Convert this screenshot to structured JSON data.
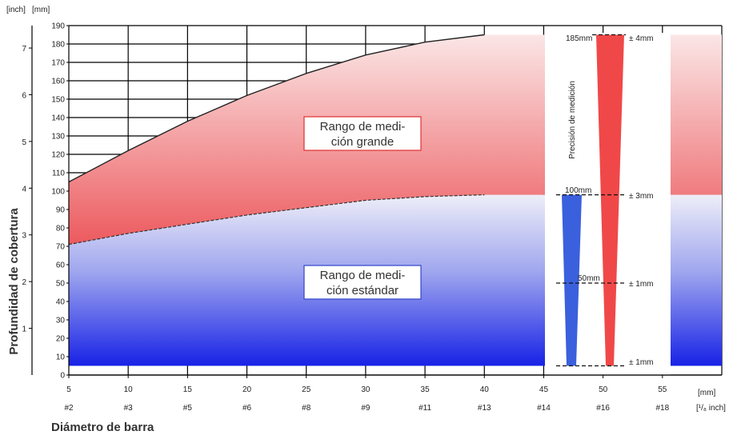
{
  "chart_data": {
    "type": "area",
    "title": "",
    "xlabel": "Diámetro de barra",
    "ylabel": "Profundidad de cobertura",
    "x_unit": "[mm]",
    "x_unit_inch": "[¹/₈ inch]",
    "y_unit_inch": "[inch]",
    "y_unit_mm": "[mm]",
    "xlim": [
      5,
      60
    ],
    "ylim": [
      0,
      190
    ],
    "x_ticks": [
      5,
      10,
      15,
      20,
      25,
      30,
      35,
      40,
      45,
      50,
      55
    ],
    "y_ticks": [
      0,
      10,
      20,
      30,
      40,
      50,
      60,
      70,
      80,
      90,
      100,
      110,
      120,
      130,
      140,
      150,
      160,
      170,
      180,
      190
    ],
    "inch_ticks": [
      1,
      2,
      3,
      4,
      5,
      6,
      7
    ],
    "rebar_labels": [
      "#2",
      "#3",
      "#5",
      "#6",
      "#8",
      "#9",
      "#11",
      "#13",
      "#14",
      "#16",
      "#18"
    ],
    "grid": true,
    "series": [
      {
        "name": "Rango de medición estándar",
        "color": "#3344dd",
        "x": [
          5,
          10,
          15,
          20,
          25,
          30,
          35,
          40,
          60
        ],
        "y": [
          71,
          77,
          82,
          87,
          91,
          95,
          97,
          98,
          98
        ]
      },
      {
        "name": "Rango de medición grande",
        "color": "#e84444",
        "x": [
          5,
          10,
          15,
          20,
          25,
          30,
          35,
          40,
          60
        ],
        "y": [
          105,
          122,
          138,
          152,
          164,
          174,
          181,
          185,
          185
        ]
      }
    ],
    "region_labels": {
      "large_line1": "Rango de medi-",
      "large_line2": "ción grande",
      "standard_line1": "Rango de medi-",
      "standard_line2": "ción estándar"
    },
    "precision": {
      "title": "Precisión de medición",
      "standard_max": "100mm",
      "standard_mid": "50mm",
      "large_max": "185mm",
      "tolerances": [
        "± 4mm",
        "± 3mm",
        "± 1mm",
        "± 1mm"
      ],
      "tolerance_depths": [
        185,
        98,
        50,
        5
      ]
    }
  }
}
